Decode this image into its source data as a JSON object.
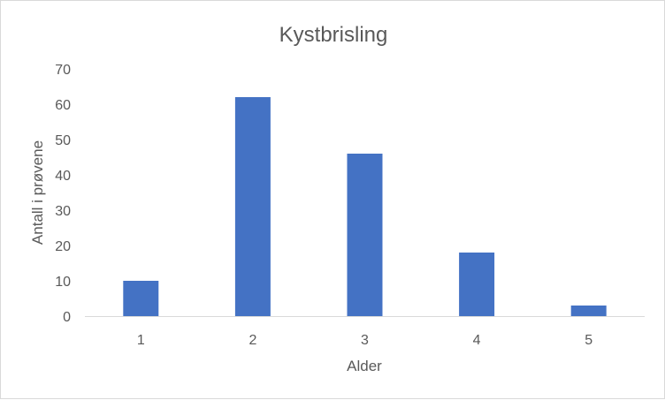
{
  "chart_data": {
    "type": "bar",
    "title": "Kystbrisling",
    "xlabel": "Alder",
    "ylabel": "Antall i prøvene",
    "categories": [
      "1",
      "2",
      "3",
      "4",
      "5"
    ],
    "values": [
      10,
      62,
      46,
      18,
      3
    ],
    "ylim": [
      0,
      70
    ],
    "yticks": [
      "0",
      "10",
      "20",
      "30",
      "40",
      "50",
      "60",
      "70"
    ],
    "grid": false,
    "legend": "none",
    "bar_color": "#4472c4"
  }
}
